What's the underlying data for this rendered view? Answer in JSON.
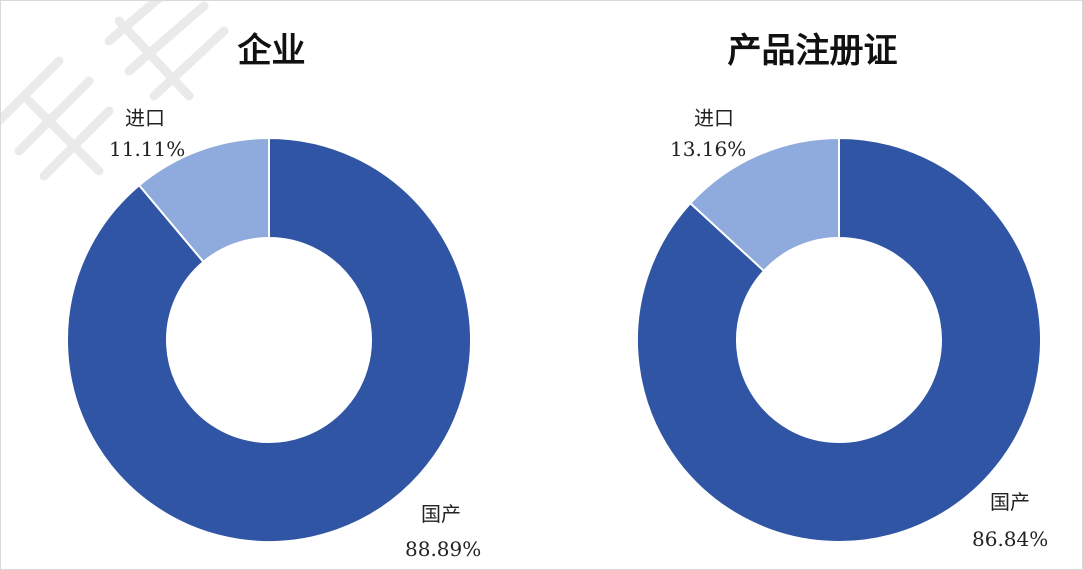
{
  "colors": {
    "domestic": "#2f55a4",
    "imported": "#8faadc",
    "separator": "#ffffff"
  },
  "chart_data": [
    {
      "type": "pie",
      "variant": "donut",
      "title": "企业",
      "slices": [
        {
          "label": "进口",
          "value": 11.11,
          "value_text": "11.11%",
          "color": "#8faadc"
        },
        {
          "label": "国产",
          "value": 88.89,
          "value_text": "88.89%",
          "color": "#2f55a4"
        }
      ],
      "legend": "none"
    },
    {
      "type": "pie",
      "variant": "donut",
      "title": "产品注册证",
      "slices": [
        {
          "label": "进口",
          "value": 13.16,
          "value_text": "13.16%",
          "color": "#8faadc"
        },
        {
          "label": "国产",
          "value": 86.84,
          "value_text": "86.84%",
          "color": "#2f55a4"
        }
      ],
      "legend": "none"
    }
  ]
}
